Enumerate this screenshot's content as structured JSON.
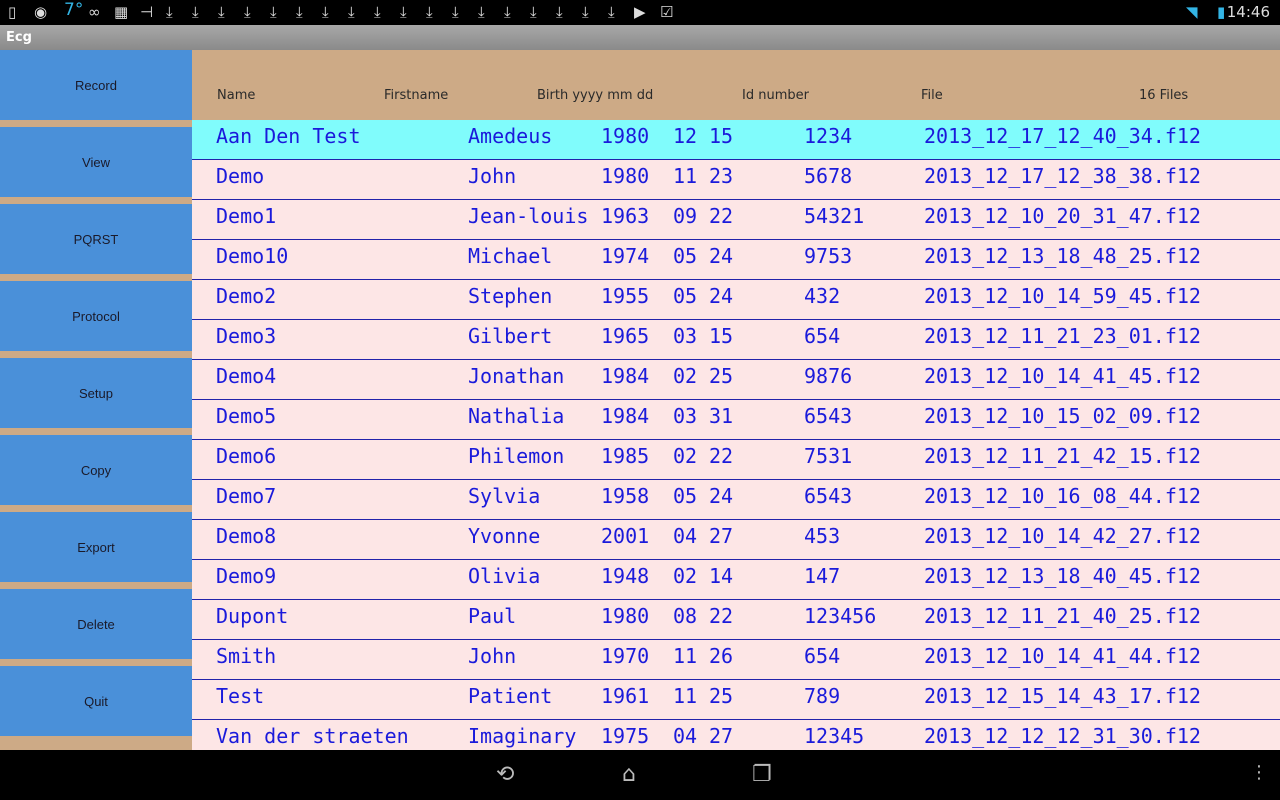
{
  "status_bar": {
    "time": "14:46",
    "temperature": "7°",
    "icons": [
      "sd-card-icon",
      "nvidia-icon",
      "temperature-icon",
      "link-icon",
      "app-icon",
      "usb-icon",
      "download-icon",
      "download-icon",
      "download-icon",
      "download-icon",
      "download-icon",
      "download-icon",
      "download-icon",
      "download-icon",
      "download-icon",
      "download-icon",
      "download-icon",
      "download-icon",
      "download-icon",
      "download-icon",
      "download-icon",
      "download-icon",
      "download-icon",
      "download-icon",
      "play-store-icon",
      "store-check-icon",
      "wifi-icon",
      "battery-icon"
    ]
  },
  "app": {
    "title": "Ecg"
  },
  "sidebar": {
    "buttons": [
      "Record",
      "View",
      "PQRST",
      "Protocol",
      "Setup",
      "Copy",
      "Export",
      "Delete",
      "Quit"
    ]
  },
  "table": {
    "headers": {
      "name": "Name",
      "firstname": "Firstname",
      "birth": "Birth yyyy mm dd",
      "id": "Id number",
      "file": "File",
      "count": "16 Files"
    },
    "selected_index": 0,
    "rows": [
      [
        "Aan Den Test",
        "Amedeus",
        "1980",
        "12",
        "15",
        "1234",
        "2013_12_17_12_40_34.f12"
      ],
      [
        "Demo",
        "John",
        "1980",
        "11",
        "23",
        "5678",
        "2013_12_17_12_38_38.f12"
      ],
      [
        "Demo1",
        "Jean-louis",
        "1963",
        "09",
        "22",
        "54321",
        "2013_12_10_20_31_47.f12"
      ],
      [
        "Demo10",
        "Michael",
        "1974",
        "05",
        "24",
        "9753",
        "2013_12_13_18_48_25.f12"
      ],
      [
        "Demo2",
        "Stephen",
        "1955",
        "05",
        "24",
        "432",
        "2013_12_10_14_59_45.f12"
      ],
      [
        "Demo3",
        "Gilbert",
        "1965",
        "03",
        "15",
        "654",
        "2013_12_11_21_23_01.f12"
      ],
      [
        "Demo4",
        "Jonathan",
        "1984",
        "02",
        "25",
        "9876",
        "2013_12_10_14_41_45.f12"
      ],
      [
        "Demo5",
        "Nathalia",
        "1984",
        "03",
        "31",
        "6543",
        "2013_12_10_15_02_09.f12"
      ],
      [
        "Demo6",
        "Philemon",
        "1985",
        "02",
        "22",
        "7531",
        "2013_12_11_21_42_15.f12"
      ],
      [
        "Demo7",
        "Sylvia",
        "1958",
        "05",
        "24",
        "6543",
        "2013_12_10_16_08_44.f12"
      ],
      [
        "Demo8",
        "Yvonne",
        "2001",
        "04",
        "27",
        "453",
        "2013_12_10_14_42_27.f12"
      ],
      [
        "Demo9",
        "Olivia",
        "1948",
        "02",
        "14",
        "147",
        "2013_12_13_18_40_45.f12"
      ],
      [
        "Dupont",
        "Paul",
        "1980",
        "08",
        "22",
        "123456",
        "2013_12_11_21_40_25.f12"
      ],
      [
        "Smith",
        "John",
        "1970",
        "11",
        "26",
        "654",
        "2013_12_10_14_41_44.f12"
      ],
      [
        "Test",
        "Patient",
        "1961",
        "11",
        "25",
        "789",
        "2013_12_15_14_43_17.f12"
      ],
      [
        "Van der straeten",
        "Imaginary",
        "1975",
        "04",
        "27",
        "12345",
        "2013_12_12_12_31_30.f12"
      ]
    ]
  },
  "colors": {
    "button": "#4a90d9",
    "background": "#cdaa86",
    "row": "#fde6e6",
    "selected_row": "#80fcfc",
    "row_text": "#1a1adb"
  }
}
